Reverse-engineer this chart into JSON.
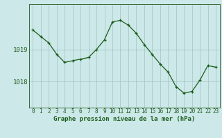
{
  "hours": [
    0,
    1,
    2,
    3,
    4,
    5,
    6,
    7,
    8,
    9,
    10,
    11,
    12,
    13,
    14,
    15,
    16,
    17,
    18,
    19,
    20,
    21,
    22,
    23
  ],
  "pressure": [
    1019.6,
    1019.4,
    1019.2,
    1018.85,
    1018.6,
    1018.65,
    1018.7,
    1018.75,
    1019.0,
    1019.3,
    1019.85,
    1019.9,
    1019.75,
    1019.5,
    1019.15,
    1018.85,
    1018.55,
    1018.3,
    1017.85,
    1017.65,
    1017.7,
    1018.05,
    1018.5,
    1018.45
  ],
  "line_color": "#1a5c1a",
  "marker_color": "#1a5c1a",
  "bg_color": "#cce8e8",
  "grid_color": "#aac8c8",
  "axis_color": "#1a5c1a",
  "xlabel": "Graphe pression niveau de la mer (hPa)",
  "xlabel_fontsize": 6.5,
  "tick_fontsize": 5.5,
  "ylabel_fontsize": 6.5,
  "ytick_labels": [
    "1018",
    "1019"
  ],
  "ytick_values": [
    1018.0,
    1019.0
  ],
  "ylim": [
    1017.2,
    1020.4
  ],
  "xlim": [
    -0.5,
    23.5
  ]
}
